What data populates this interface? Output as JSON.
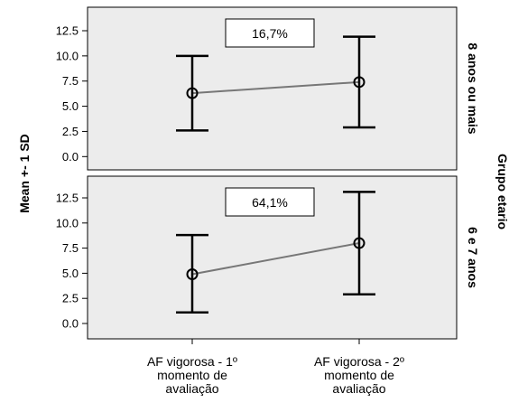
{
  "chart_data": {
    "type": "errorbar",
    "ylabel": "Mean +- 1 SD",
    "facet_title": "Grupo etario",
    "categories": [
      [
        "AF vigorosa - 1º",
        "momento de",
        "avaliação"
      ],
      [
        "AF vigorosa - 2º",
        "momento de",
        "avaliação"
      ]
    ],
    "yticks": [
      "0.0",
      "2.5",
      "5.0",
      "7.5",
      "10.0",
      "12.5"
    ],
    "ylim": [
      0,
      13.5
    ],
    "line_color": "#777777",
    "panel_color": "#ececec",
    "panels": [
      {
        "label": "8 anos ou mais",
        "annotation": "16,7%",
        "means": [
          6.3,
          7.4
        ],
        "lower": [
          2.6,
          2.9
        ],
        "upper": [
          10.0,
          11.9
        ]
      },
      {
        "label": "6 e 7 anos",
        "annotation": "64,1%",
        "means": [
          4.9,
          8.0
        ],
        "lower": [
          1.1,
          2.9
        ],
        "upper": [
          8.8,
          13.1
        ]
      }
    ]
  }
}
